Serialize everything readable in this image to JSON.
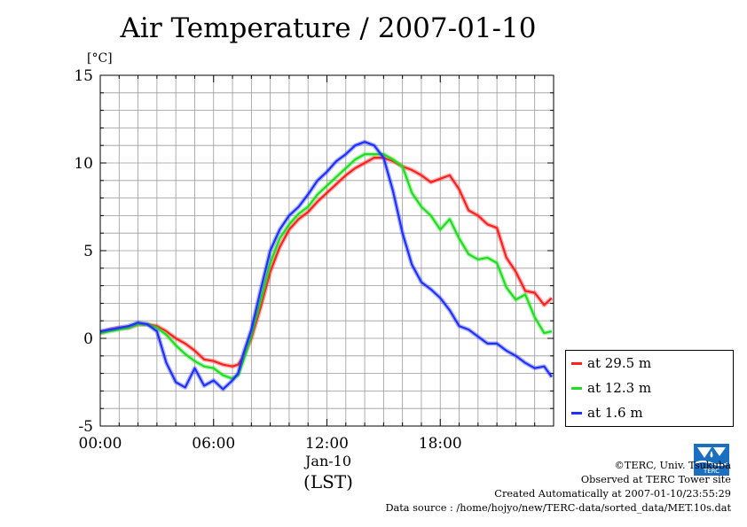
{
  "chart_data": {
    "type": "line",
    "title": "Air Temperature / 2007-01-10",
    "ylabel": "[°C]",
    "ylim": [
      -5,
      15
    ],
    "yticks": [
      "15",
      "10",
      "5",
      "0",
      "-5"
    ],
    "xlim": [
      0,
      24
    ],
    "xticks": [
      "00:00",
      "06:00",
      "12:00",
      "18:00"
    ],
    "xdate_label": "Jan-10",
    "xunits_label": "(LST)",
    "grid": true,
    "legend_position": "right",
    "series": [
      {
        "name": "at 29.5 m",
        "color": "#ff2020",
        "x": [
          0,
          0.5,
          1,
          1.5,
          2,
          2.5,
          3,
          3.5,
          4,
          4.5,
          5,
          5.5,
          6,
          6.5,
          7,
          7.3,
          7.6,
          8,
          8.5,
          9,
          9.5,
          10,
          10.5,
          11,
          11.5,
          12,
          12.5,
          13,
          13.5,
          14,
          14.5,
          15,
          15.5,
          16,
          16.5,
          17,
          17.5,
          18,
          18.5,
          19,
          19.5,
          20,
          20.5,
          21,
          21.5,
          22,
          22.5,
          23,
          23.5,
          23.9
        ],
        "y": [
          0.3,
          0.5,
          0.6,
          0.6,
          0.8,
          0.8,
          0.7,
          0.4,
          0.0,
          -0.3,
          -0.7,
          -1.2,
          -1.3,
          -1.5,
          -1.6,
          -1.5,
          -1.0,
          0.0,
          1.8,
          3.8,
          5.2,
          6.2,
          6.8,
          7.2,
          7.8,
          8.3,
          8.8,
          9.3,
          9.7,
          10.0,
          10.3,
          10.3,
          10.1,
          9.8,
          9.6,
          9.3,
          8.9,
          9.1,
          9.3,
          8.5,
          7.3,
          7.0,
          6.5,
          6.3,
          4.6,
          3.8,
          2.7,
          2.6,
          1.9,
          2.3
        ]
      },
      {
        "name": "at 12.3 m",
        "color": "#20dd20",
        "x": [
          0,
          0.5,
          1,
          1.5,
          2,
          2.5,
          3,
          3.5,
          4,
          4.5,
          5,
          5.5,
          6,
          6.5,
          7,
          7.3,
          7.6,
          8,
          8.5,
          9,
          9.5,
          10,
          10.5,
          11,
          11.5,
          12,
          12.5,
          13,
          13.5,
          14,
          14.5,
          15,
          15.5,
          16,
          16.5,
          17,
          17.5,
          18,
          18.5,
          19,
          19.5,
          20,
          20.5,
          21,
          21.5,
          22,
          22.5,
          23,
          23.5,
          23.9
        ],
        "y": [
          0.3,
          0.4,
          0.5,
          0.6,
          0.8,
          0.8,
          0.6,
          0.2,
          -0.4,
          -0.9,
          -1.3,
          -1.6,
          -1.7,
          -2.1,
          -2.3,
          -2.1,
          -1.2,
          0.2,
          2.2,
          4.3,
          5.7,
          6.5,
          7.1,
          7.5,
          8.2,
          8.7,
          9.2,
          9.7,
          10.2,
          10.5,
          10.5,
          10.5,
          10.2,
          9.8,
          8.3,
          7.5,
          7.0,
          6.2,
          6.8,
          5.7,
          4.8,
          4.5,
          4.6,
          4.3,
          2.9,
          2.2,
          2.5,
          1.2,
          0.3,
          0.4
        ]
      },
      {
        "name": "at 1.6 m",
        "color": "#2030ff",
        "x": [
          0,
          0.5,
          1,
          1.5,
          2,
          2.5,
          3,
          3.5,
          4,
          4.5,
          5,
          5.5,
          6,
          6.5,
          7,
          7.3,
          7.6,
          8,
          8.5,
          9,
          9.5,
          10,
          10.5,
          11,
          11.5,
          12,
          12.5,
          13,
          13.5,
          14,
          14.5,
          15,
          15.5,
          16,
          16.5,
          17,
          17.5,
          18,
          18.5,
          19,
          19.5,
          20,
          20.5,
          21,
          21.5,
          22,
          22.5,
          23,
          23.5,
          23.9
        ],
        "y": [
          0.4,
          0.5,
          0.6,
          0.7,
          0.9,
          0.8,
          0.4,
          -1.4,
          -2.5,
          -2.8,
          -1.7,
          -2.7,
          -2.4,
          -2.9,
          -2.4,
          -2.0,
          -0.8,
          0.5,
          2.8,
          5.0,
          6.2,
          7.0,
          7.5,
          8.2,
          9.0,
          9.5,
          10.1,
          10.5,
          11.0,
          11.2,
          11.0,
          10.3,
          8.4,
          6.0,
          4.2,
          3.2,
          2.8,
          2.3,
          1.6,
          0.7,
          0.5,
          0.1,
          -0.3,
          -0.3,
          -0.7,
          -1.0,
          -1.4,
          -1.7,
          -1.6,
          -2.2
        ]
      }
    ]
  },
  "credits": {
    "copyright": "©TERC, Univ. Tsukuba",
    "observed": "Observed at TERC Tower site",
    "created": "Created Automatically at 2007-01-10/23:55:29",
    "source": "Data source : /home/hojyo/new/TERC-data/sorted_data/MET.10s.dat",
    "logo_text": "TERC"
  }
}
